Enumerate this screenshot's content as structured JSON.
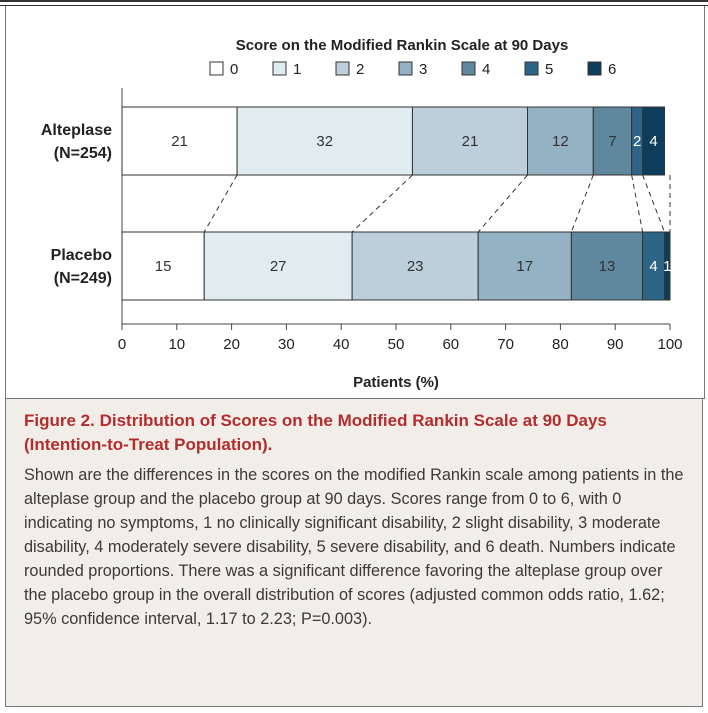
{
  "chart_data": {
    "type": "bar",
    "orientation": "horizontal-stacked",
    "title": "Score on the Modified Rankin Scale at 90 Days",
    "legend": [
      "0",
      "1",
      "2",
      "3",
      "4",
      "5",
      "6"
    ],
    "colors": [
      "#ffffff",
      "#e1ecf1",
      "#bccfda",
      "#94b2c3",
      "#5f879e",
      "#2c6585",
      "#0e3d5c"
    ],
    "groups": [
      {
        "label_line1": "Alteplase",
        "label_line2": "(N=254)",
        "values": [
          21,
          32,
          21,
          12,
          7,
          2,
          4
        ],
        "labels": [
          "21",
          "32",
          "21",
          "12",
          "7",
          "2",
          "4"
        ]
      },
      {
        "label_line1": "Placebo",
        "label_line2": "(N=249)",
        "values": [
          15,
          27,
          23,
          17,
          13,
          4,
          1
        ],
        "labels": [
          "15",
          "27",
          "23",
          "17",
          "13",
          "4",
          "1"
        ]
      }
    ],
    "xlabel": "Patients (%)",
    "xlim": [
      0,
      100
    ],
    "xticks": [
      "0",
      "10",
      "20",
      "30",
      "40",
      "50",
      "60",
      "70",
      "80",
      "90",
      "100"
    ],
    "grid": false
  },
  "caption": {
    "label": "Figure 2.",
    "title": "Distribution of Scores on the Modified Rankin Scale at 90 Days (Intention-to-Treat Population).",
    "body": "Shown are the differences in the scores on the modified Rankin scale among patients in the alteplase group and the placebo group at 90 days. Scores range from 0 to 6, with 0 indicating no symptoms, 1 no clinically significant disability, 2 slight disability, 3 moderate disability, 4 moderately severe disability, 5 severe disability, and 6 death. Numbers indicate rounded proportions. There was a significant difference favoring the alteplase group over the placebo group in the overall distribution of scores (adjusted common odds ratio, 1.62; 95% confidence interval, 1.17 to 2.23; P=0.003)."
  }
}
